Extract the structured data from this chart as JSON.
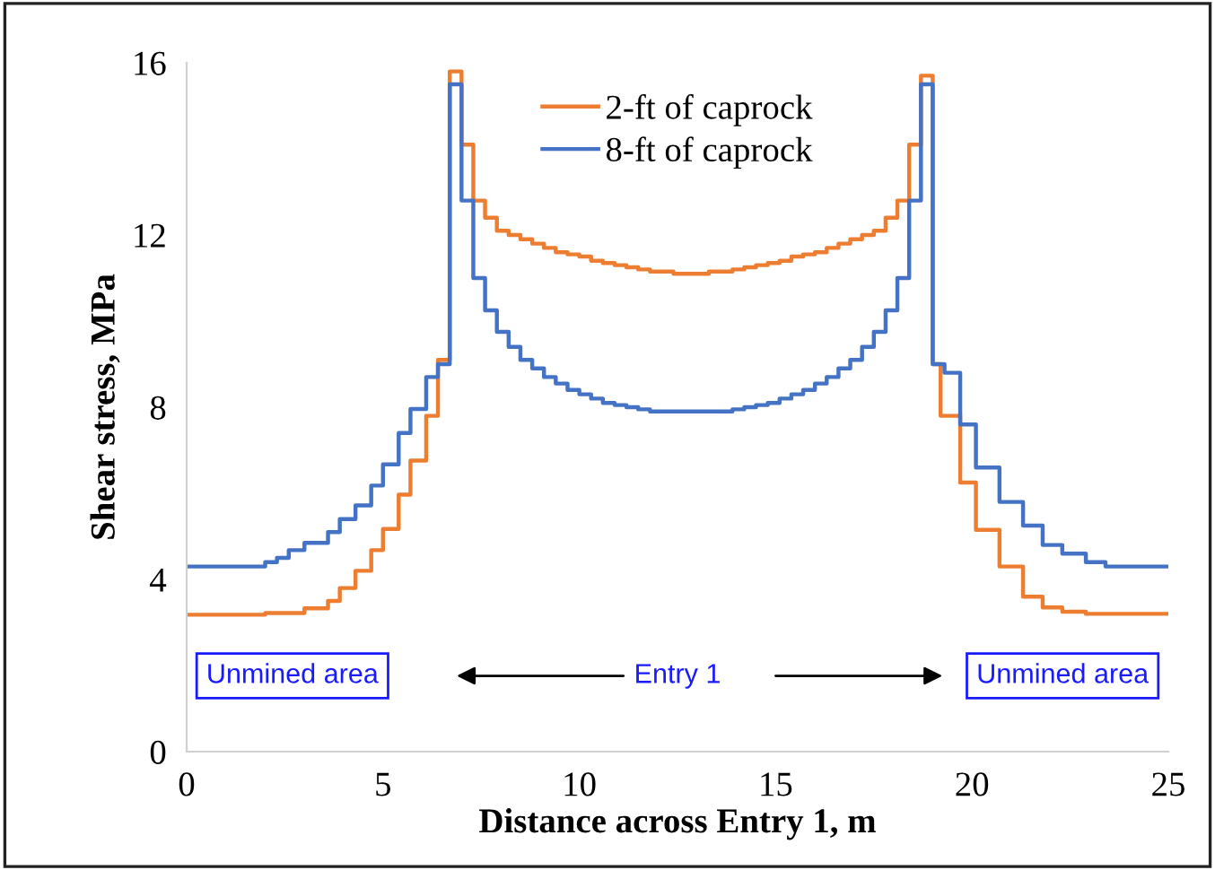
{
  "chart_data": {
    "type": "step",
    "xlabel": "Distance across Entry 1, m",
    "ylabel": "Shear stress, MPa",
    "xlim": [
      0,
      25
    ],
    "xticks": [
      0,
      5,
      10,
      15,
      20,
      25
    ],
    "ylim": [
      0,
      16
    ],
    "yticks": [
      0,
      4,
      8,
      12,
      16
    ],
    "grid": false,
    "legend": "top",
    "marker": "none",
    "line_style": "solid",
    "annotations": [
      "Unmined area",
      "Entry 1",
      "Unmined area"
    ],
    "series": [
      {
        "name": "2-ft of caprock",
        "color": "#ed7d31",
        "x": [
          0,
          2.0,
          3.0,
          3.6,
          3.9,
          4.3,
          4.7,
          5.0,
          5.4,
          5.7,
          6.1,
          6.4,
          6.7,
          7.0,
          7.3,
          7.6,
          7.9,
          8.2,
          8.5,
          8.8,
          9.1,
          9.4,
          9.7,
          10.0,
          10.3,
          10.6,
          10.9,
          11.2,
          11.5,
          11.8,
          12.1,
          12.4,
          12.7,
          13.0,
          13.3,
          13.6,
          13.9,
          14.2,
          14.5,
          14.8,
          15.1,
          15.4,
          15.7,
          16.0,
          16.3,
          16.6,
          16.9,
          17.2,
          17.5,
          17.8,
          18.1,
          18.4,
          18.7,
          19.0,
          19.2,
          19.7,
          20.1,
          20.7,
          21.3,
          21.8,
          22.3,
          22.9,
          25
        ],
        "values": [
          3.18,
          3.22,
          3.33,
          3.5,
          3.8,
          4.2,
          4.68,
          5.17,
          5.97,
          6.76,
          7.8,
          9.1,
          15.8,
          14.1,
          12.8,
          12.4,
          12.1,
          12.0,
          11.9,
          11.8,
          11.7,
          11.6,
          11.55,
          11.5,
          11.4,
          11.35,
          11.3,
          11.25,
          11.2,
          11.15,
          11.15,
          11.1,
          11.1,
          11.1,
          11.15,
          11.15,
          11.2,
          11.25,
          11.3,
          11.35,
          11.4,
          11.5,
          11.55,
          11.6,
          11.7,
          11.8,
          11.9,
          12.0,
          12.1,
          12.4,
          12.8,
          14.1,
          15.7,
          9.0,
          7.8,
          6.25,
          5.15,
          4.3,
          3.6,
          3.35,
          3.25,
          3.2,
          3.2
        ]
      },
      {
        "name": "8-ft of caprock",
        "color": "#4472c4",
        "x": [
          0,
          2.0,
          2.3,
          2.6,
          3.0,
          3.6,
          3.9,
          4.3,
          4.7,
          5.0,
          5.4,
          5.7,
          6.1,
          6.4,
          6.7,
          7.0,
          7.3,
          7.6,
          7.9,
          8.2,
          8.5,
          8.8,
          9.1,
          9.4,
          9.7,
          10.0,
          10.3,
          10.6,
          10.9,
          11.2,
          11.5,
          11.8,
          12.1,
          12.4,
          12.7,
          13.0,
          13.3,
          13.6,
          13.9,
          14.2,
          14.5,
          14.8,
          15.1,
          15.4,
          15.7,
          16.0,
          16.3,
          16.6,
          16.9,
          17.2,
          17.5,
          17.8,
          18.1,
          18.4,
          18.7,
          19.0,
          19.3,
          19.7,
          20.1,
          20.7,
          21.3,
          21.8,
          22.3,
          22.9,
          23.4,
          25
        ],
        "values": [
          4.3,
          4.4,
          4.5,
          4.68,
          4.85,
          5.1,
          5.4,
          5.72,
          6.18,
          6.67,
          7.4,
          7.96,
          8.7,
          9.0,
          15.5,
          12.8,
          11.0,
          10.25,
          9.75,
          9.4,
          9.1,
          8.9,
          8.7,
          8.55,
          8.4,
          8.3,
          8.2,
          8.1,
          8.05,
          8.0,
          7.95,
          7.9,
          7.9,
          7.9,
          7.9,
          7.9,
          7.9,
          7.9,
          7.95,
          8.0,
          8.05,
          8.1,
          8.2,
          8.3,
          8.4,
          8.55,
          8.7,
          8.9,
          9.1,
          9.4,
          9.75,
          10.25,
          11.0,
          12.8,
          15.5,
          9.0,
          8.8,
          7.6,
          6.6,
          5.8,
          5.25,
          4.8,
          4.6,
          4.4,
          4.3,
          4.3
        ]
      }
    ]
  }
}
